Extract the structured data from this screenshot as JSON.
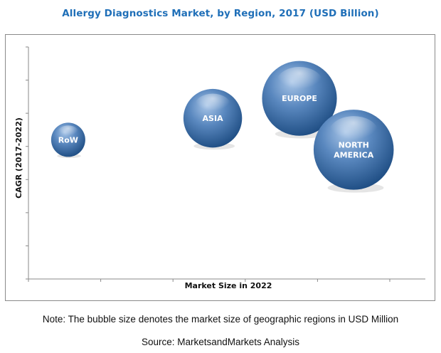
{
  "title": "Allergy Diagnostics Market, by Region, 2017 (USD Billion)",
  "note": "Note: The bubble size denotes the market size of geographic regions in USD Million",
  "source": "Source: MarketsandMarkets Analysis",
  "colors": {
    "title": "#1f6fb8",
    "bubble_light": "#8fb3dc",
    "bubble_mid": "#4a7ab3",
    "bubble_dark": "#1f4f86",
    "axis": "#8a8a8a"
  },
  "chart_data": {
    "type": "scatter",
    "variant": "bubble",
    "title": "Allergy Diagnostics Market, by Region, 2017 (USD Billion)",
    "xlabel": "Market Size in 2022",
    "ylabel": "CAGR (2017-2022)",
    "x_ticks": 5,
    "y_ticks": 7,
    "xlim": [
      0,
      5
    ],
    "ylim": [
      0,
      7
    ],
    "grid": false,
    "legend": "none",
    "points": [
      {
        "label": "RoW",
        "x": 0.55,
        "y": 4.2,
        "size": 1.0
      },
      {
        "label": "ASIA",
        "x": 2.55,
        "y": 4.85,
        "size": 2.95
      },
      {
        "label": "EUROPE",
        "x": 3.75,
        "y": 5.45,
        "size": 4.8
      },
      {
        "label": "NORTH AMERICA",
        "x": 4.5,
        "y": 3.9,
        "size": 5.5
      }
    ]
  }
}
